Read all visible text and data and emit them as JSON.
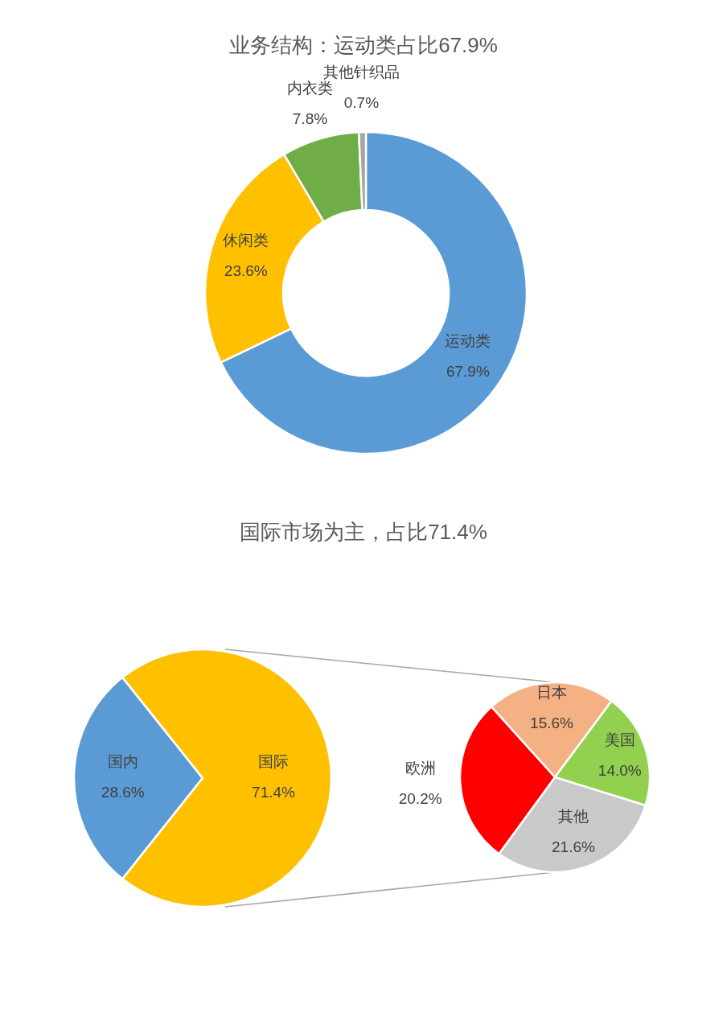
{
  "chart_data": [
    {
      "type": "donut",
      "title": "业务结构：运动类占比67.9%",
      "categories": [
        "运动类",
        "休闲类",
        "内衣类",
        "其他针织品"
      ],
      "values": [
        67.9,
        23.6,
        7.8,
        0.7
      ],
      "colors": [
        "#5b9bd5",
        "#ffc000",
        "#70ad47",
        "#a5a5a5"
      ],
      "value_labels": [
        "67.9%",
        "23.6%",
        "7.8%",
        "0.7%"
      ]
    },
    {
      "type": "pie",
      "title": "国际市场为主，占比71.4%",
      "categories": [
        "国内",
        "国际"
      ],
      "values": [
        28.6,
        71.4
      ],
      "colors": [
        "#5b9bd5",
        "#ffc000"
      ],
      "value_labels": [
        "28.6%",
        "71.4%"
      ]
    },
    {
      "type": "pie",
      "categories": [
        "日本",
        "美国",
        "其他",
        "欧洲"
      ],
      "values": [
        15.6,
        14.0,
        21.6,
        20.2
      ],
      "colors": [
        "#f4b183",
        "#92d050",
        "#c9c9c9",
        "#ff0000"
      ],
      "value_labels": [
        "15.6%",
        "14.0%",
        "21.6%",
        "20.2%"
      ]
    }
  ]
}
